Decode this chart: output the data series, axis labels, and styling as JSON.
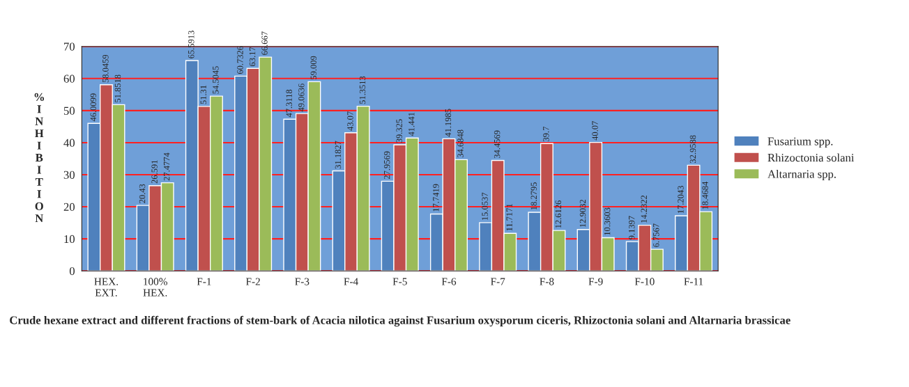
{
  "chart_data": {
    "type": "bar",
    "categories": [
      "HEX. EXT.",
      "100% HEX.",
      "F-1",
      "F-2",
      "F-3",
      "F-4",
      "F-5",
      "F-6",
      "F-7",
      "F-8",
      "F-9",
      "F-10",
      "F-11"
    ],
    "series": [
      {
        "name": "Fusarium spp.",
        "color": "#4f81bd",
        "values": [
          46.0099,
          20.43,
          65.5913,
          60.7326,
          47.3118,
          31.1827,
          27.9569,
          17.7419,
          15.0537,
          18.2795,
          12.9032,
          9.1397,
          17.2043
        ]
      },
      {
        "name": "Rhizoctonia solani",
        "color": "#c0504d",
        "values": [
          58.0459,
          26.591,
          51.31,
          63.17,
          49.0636,
          43.07,
          39.325,
          41.1985,
          34.4569,
          39.7,
          40.07,
          14.2322,
          32.9588
        ]
      },
      {
        "name": "Altarnaria spp.",
        "color": "#9bbb59",
        "values": [
          51.8518,
          27.4774,
          54.5045,
          66.667,
          59.009,
          51.3513,
          41.441,
          34.6848,
          11.7171,
          12.6126,
          10.3603,
          6.7567,
          18.4684
        ]
      }
    ],
    "ylabel": "% INHIBITION",
    "xlabel": "Crude hexane extract and different fractions of stem-bark of Acacia nilotica against Fusarium oxysporum ciceris, Rhizoctonia solani and Altarnaria brassicae",
    "ylim": [
      0,
      70
    ],
    "yticks": [
      0,
      10,
      20,
      30,
      40,
      50,
      60,
      70
    ],
    "grid": "y",
    "legend": "right",
    "data_labels": true
  }
}
